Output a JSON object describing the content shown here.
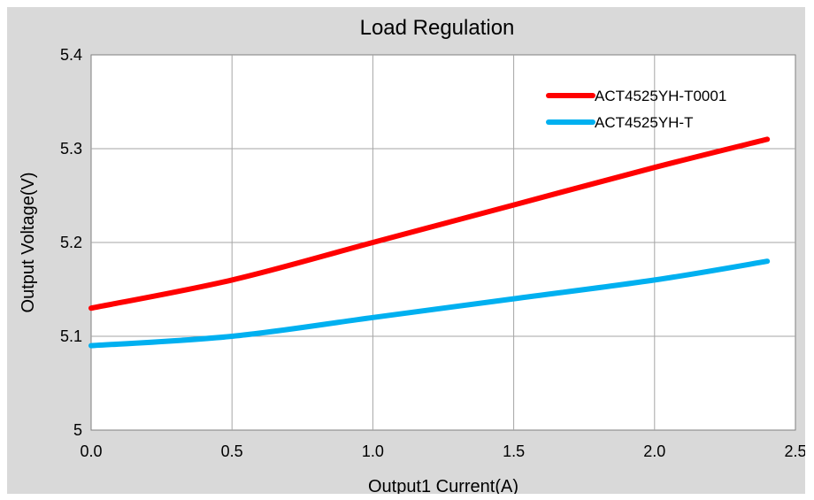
{
  "chart_data": {
    "type": "line",
    "title": "Load Regulation",
    "xlabel": "Output1 Current(A)",
    "ylabel": "Output Voltage(V)",
    "xlim": [
      0,
      2.5
    ],
    "ylim": [
      5.0,
      5.4
    ],
    "x_ticks": [
      "0.0",
      "0.5",
      "1.0",
      "1.5",
      "2.0",
      "2.5"
    ],
    "y_ticks": [
      "5",
      "5.1",
      "5.2",
      "5.3",
      "5.4"
    ],
    "grid": true,
    "legend_position": "top-right",
    "series": [
      {
        "name": "ACT4525YH-T0001",
        "color": "#ff0000",
        "points": [
          [
            0,
            5.13
          ],
          [
            0.5,
            5.16
          ],
          [
            1.0,
            5.2
          ],
          [
            1.5,
            5.24
          ],
          [
            2.0,
            5.28
          ],
          [
            2.4,
            5.31
          ]
        ]
      },
      {
        "name": "ACT4525YH-T",
        "color": "#00b0f0",
        "points": [
          [
            0,
            5.09
          ],
          [
            0.5,
            5.1
          ],
          [
            1.0,
            5.12
          ],
          [
            1.5,
            5.14
          ],
          [
            2.0,
            5.16
          ],
          [
            2.4,
            5.18
          ]
        ]
      }
    ]
  }
}
